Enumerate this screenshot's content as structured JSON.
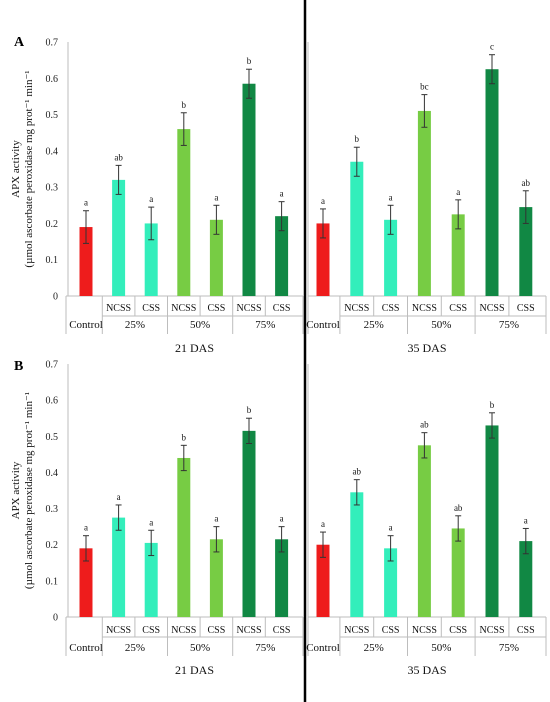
{
  "chart_data": {
    "type": "bar",
    "ylabel_line1": "APX activity",
    "ylabel_line2": "(µmol ascorbate peroxidase mg prot⁻¹ min⁻¹",
    "ylim": [
      0,
      0.7
    ],
    "yticks": [
      "0",
      "0.1",
      "0.2",
      "0.3",
      "0.4",
      "0.5",
      "0.6",
      "0.7"
    ],
    "categories": [
      "",
      "NCSS",
      "CSS",
      "NCSS",
      "CSS",
      "NCSS",
      "CSS"
    ],
    "group_labels": [
      "Control",
      "25%",
      "50%",
      "75%"
    ],
    "colors": [
      "#ee1c1c",
      "#33eebb",
      "#33eebb",
      "#77cc44",
      "#77cc44",
      "#118844",
      "#118844"
    ],
    "panels": [
      {
        "label": "A",
        "blocks": [
          {
            "title": "21 DAS",
            "values": [
              0.19,
              0.32,
              0.2,
              0.46,
              0.21,
              0.585,
              0.22
            ],
            "errors": [
              0.045,
              0.04,
              0.045,
              0.045,
              0.04,
              0.04,
              0.04
            ],
            "letters": [
              "a",
              "ab",
              "a",
              "b",
              "a",
              "b",
              "a"
            ]
          },
          {
            "title": "35 DAS",
            "values": [
              0.2,
              0.37,
              0.21,
              0.51,
              0.225,
              0.625,
              0.245
            ],
            "errors": [
              0.04,
              0.04,
              0.04,
              0.045,
              0.04,
              0.04,
              0.045
            ],
            "letters": [
              "a",
              "b",
              "a",
              "bc",
              "a",
              "c",
              "ab"
            ]
          }
        ]
      },
      {
        "label": "B",
        "blocks": [
          {
            "title": "21 DAS",
            "values": [
              0.19,
              0.275,
              0.205,
              0.44,
              0.215,
              0.515,
              0.215
            ],
            "errors": [
              0.035,
              0.035,
              0.035,
              0.035,
              0.035,
              0.035,
              0.035
            ],
            "letters": [
              "a",
              "a",
              "a",
              "b",
              "a",
              "b",
              "a"
            ]
          },
          {
            "title": "35 DAS",
            "values": [
              0.2,
              0.345,
              0.19,
              0.475,
              0.245,
              0.53,
              0.21
            ],
            "errors": [
              0.035,
              0.035,
              0.035,
              0.035,
              0.035,
              0.035,
              0.035
            ],
            "letters": [
              "a",
              "ab",
              "a",
              "ab",
              "ab",
              "b",
              "a"
            ]
          }
        ]
      }
    ]
  }
}
